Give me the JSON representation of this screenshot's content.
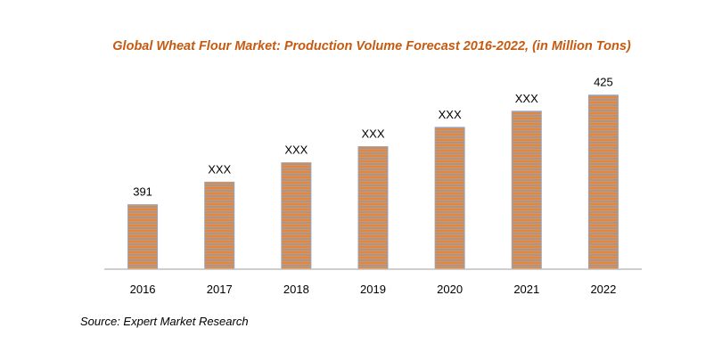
{
  "chart_data": {
    "type": "bar",
    "title": "Global Wheat Flour Market: Production Volume Forecast 2016-2022, (in Million Tons)",
    "categories": [
      "2016",
      "2017",
      "2018",
      "2019",
      "2020",
      "2021",
      "2022"
    ],
    "values": [
      391,
      398,
      404,
      409,
      415,
      420,
      425
    ],
    "data_labels": [
      "391",
      "XXX",
      "XXX",
      "XXX",
      "XXX",
      "XXX",
      "425"
    ],
    "xlabel": "",
    "ylabel": "",
    "ylim": [
      371,
      431
    ],
    "grid": false,
    "bar_color": "#e2873b",
    "stripe_color": "#9aa3b5"
  },
  "source": "Source:  Expert Market Research"
}
